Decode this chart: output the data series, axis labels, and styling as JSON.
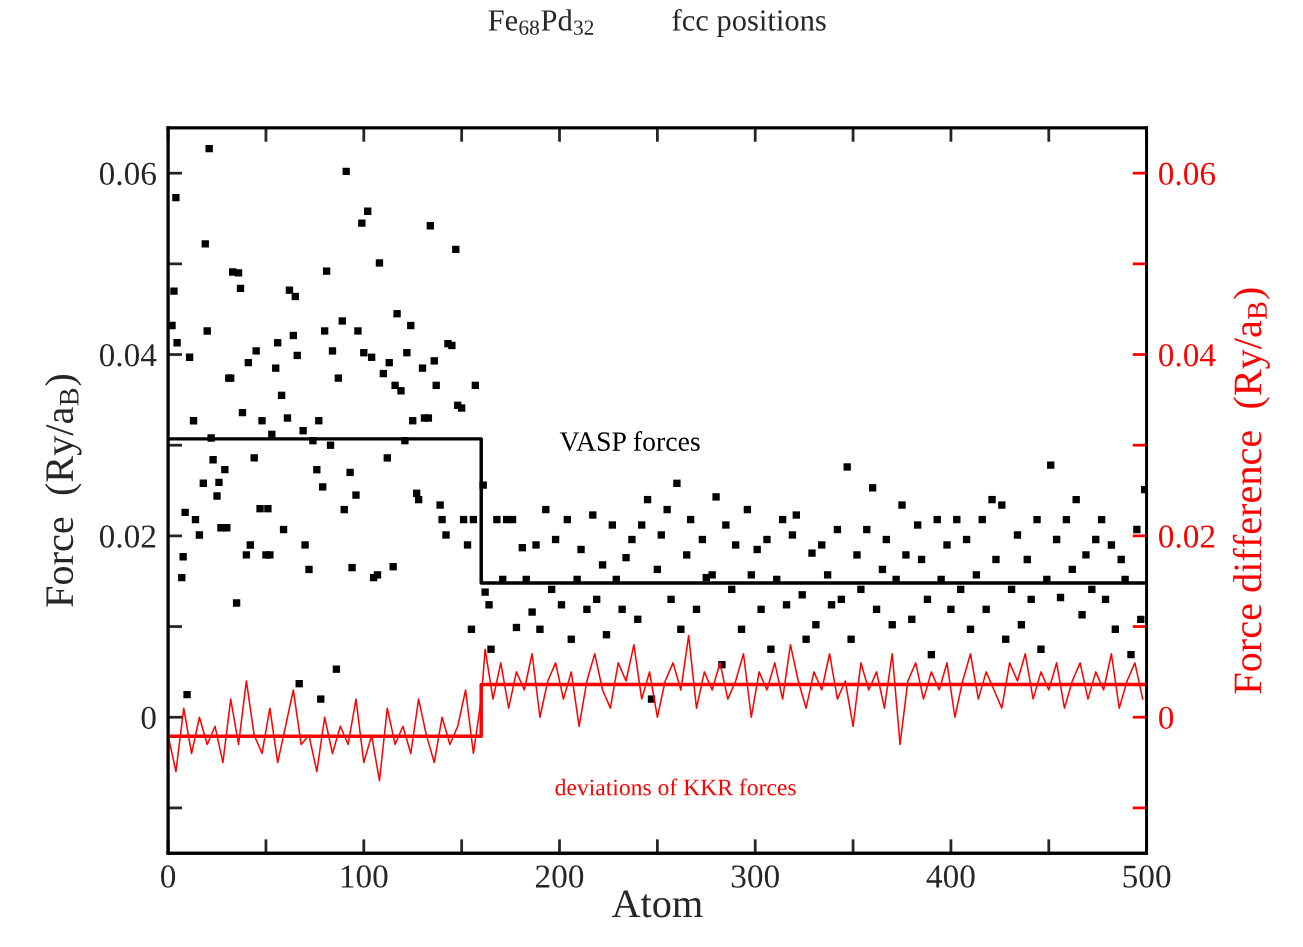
{
  "chart_data": {
    "type": "scatter",
    "title": "Fe$_{68}$Pd$_{32}$          fcc positions",
    "xlabel": "Atom",
    "ylabel": "Force  (Ry/a$_{B}$)",
    "y2label": "Force difference  (Ry/a$_{B}$)",
    "xlim": [
      0,
      500
    ],
    "xticks": [
      0,
      {
        "value": 50,
        "label": null
      },
      100,
      {
        "value": 150,
        "label": null
      },
      200,
      {
        "value": 250,
        "label": null
      },
      300,
      {
        "value": 350,
        "label": null
      },
      400,
      {
        "value": 450,
        "label": null
      },
      500
    ],
    "ylim": [
      -0.015,
      0.065
    ],
    "yticks": [
      {
        "value": -0.01,
        "label": null
      },
      0,
      {
        "value": 0.01,
        "label": null
      },
      0.02,
      {
        "value": 0.03,
        "label": null
      },
      0.04,
      {
        "value": 0.05,
        "label": null
      },
      0.06
    ],
    "y2lim": [
      -0.015,
      0.065
    ],
    "y2ticks": [
      {
        "value": -0.01,
        "label": null
      },
      0,
      {
        "value": 0.01,
        "label": null
      },
      0.02,
      {
        "value": 0.03,
        "label": null
      },
      0.04,
      {
        "value": 0.05,
        "label": null
      },
      0.06
    ],
    "series": [
      {
        "marker": "square",
        "color": "#000000",
        "x": [
          2,
          4,
          3,
          4.6,
          7.7,
          7,
          8.7,
          9.7,
          11,
          13,
          14,
          16,
          18,
          19,
          20,
          21,
          22,
          23,
          25,
          26,
          27,
          29,
          30,
          31,
          32,
          33,
          35,
          36,
          37,
          38,
          40,
          41,
          42,
          44,
          45,
          47,
          48,
          50,
          51,
          52,
          53,
          55,
          56,
          58,
          59,
          61,
          62,
          64,
          65,
          66,
          67,
          69,
          70,
          72,
          74,
          76,
          77,
          78,
          79,
          80,
          81,
          83,
          84,
          86,
          87,
          89,
          90,
          91,
          93,
          94,
          96,
          97,
          99,
          100,
          102,
          104,
          105,
          107,
          108,
          110,
          112,
          113,
          115,
          116,
          117,
          119,
          121,
          122,
          124,
          125,
          127,
          128,
          130,
          131,
          133,
          134,
          136,
          137,
          139,
          140,
          142,
          143,
          145,
          147,
          148,
          150,
          151,
          153,
          155,
          156,
          157,
          161,
          162,
          164,
          165,
          168,
          171,
          173,
          176,
          178,
          181,
          183,
          186,
          188,
          190,
          193,
          196,
          198,
          201,
          204,
          206,
          209,
          211,
          214,
          217,
          219,
          222,
          224,
          227,
          229,
          232,
          234,
          237,
          240,
          242,
          245,
          247,
          250,
          252,
          255,
          257,
          260,
          262,
          265,
          267,
          270,
          273,
          275,
          278,
          280,
          283,
          285,
          288,
          290,
          293,
          296,
          298,
          301,
          303,
          306,
          308,
          311,
          314,
          316,
          319,
          321,
          324,
          326,
          329,
          331,
          334,
          337,
          339,
          342,
          344,
          347,
          349,
          352,
          354,
          357,
          360,
          362,
          365,
          367,
          370,
          372,
          375,
          377,
          380,
          383,
          385,
          388,
          390,
          393,
          395,
          398,
          400,
          403,
          405,
          408,
          410,
          413,
          416,
          418,
          421,
          423,
          426,
          428,
          431,
          434,
          436,
          439,
          441,
          444,
          446,
          449,
          451,
          454,
          456,
          459,
          462,
          464,
          467,
          469,
          472,
          474,
          477,
          479,
          482,
          484,
          487,
          489,
          492,
          495,
          497,
          499
        ],
        "values": [
          0.0432,
          0.0573,
          0.047,
          0.0413,
          0.0177,
          0.0154,
          0.0226,
          0.0025,
          0.0397,
          0.0327,
          0.0218,
          0.0201,
          0.0258,
          0.0522,
          0.0426,
          0.0627,
          0.0308,
          0.0284,
          0.0244,
          0.0259,
          0.0209,
          0.0273,
          0.0209,
          0.0374,
          0.0374,
          0.0491,
          0.0126,
          0.049,
          0.0473,
          0.0336,
          0.0179,
          0.0391,
          0.019,
          0.0286,
          0.0404,
          0.023,
          0.0327,
          0.0179,
          0.023,
          0.0179,
          0.0312,
          0.0385,
          0.0413,
          0.0355,
          0.0207,
          0.033,
          0.0471,
          0.0421,
          0.0464,
          0.0399,
          0.0037,
          0.0316,
          0.019,
          0.0163,
          0.0305,
          0.0273,
          0.0327,
          0.002,
          0.0254,
          0.0426,
          0.0492,
          0.03,
          0.0404,
          0.0053,
          0.0374,
          0.0437,
          0.0229,
          0.0602,
          0.027,
          0.0165,
          0.0245,
          0.0426,
          0.0545,
          0.0402,
          0.0558,
          0.0397,
          0.0154,
          0.0157,
          0.0501,
          0.0379,
          0.0286,
          0.0391,
          0.0166,
          0.0366,
          0.0445,
          0.036,
          0.0305,
          0.0402,
          0.0432,
          0.0327,
          0.0247,
          0.024,
          0.0385,
          0.033,
          0.033,
          0.0542,
          0.0393,
          0.0366,
          0.0234,
          0.0218,
          0.0201,
          0.0412,
          0.041,
          0.0516,
          0.0344,
          0.0341,
          0.0218,
          0.019,
          0.0097,
          0.0218,
          0.0366,
          0.0256,
          0.0138,
          0.0124,
          0.0075,
          0.0218,
          0.0152,
          0.0218,
          0.0218,
          0.0099,
          0.0187,
          0.0152,
          0.0116,
          0.019,
          0.0097,
          0.0229,
          0.0141,
          0.0196,
          0.0124,
          0.0218,
          0.0086,
          0.0152,
          0.0185,
          0.0119,
          0.0223,
          0.013,
          0.0168,
          0.0091,
          0.0212,
          0.0152,
          0.0119,
          0.0176,
          0.0196,
          0.0108,
          0.0212,
          0.024,
          0.002,
          0.0163,
          0.0201,
          0.0229,
          0.013,
          0.0258,
          0.0097,
          0.0179,
          0.0218,
          0.0119,
          0.0196,
          0.0154,
          0.0157,
          0.0243,
          0.0058,
          0.0212,
          0.0141,
          0.019,
          0.0097,
          0.0229,
          0.0157,
          0.0185,
          0.0119,
          0.0196,
          0.0075,
          0.0152,
          0.0218,
          0.0124,
          0.0201,
          0.0223,
          0.0135,
          0.0086,
          0.0181,
          0.0102,
          0.019,
          0.0157,
          0.0124,
          0.0207,
          0.013,
          0.0276,
          0.0086,
          0.0179,
          0.0141,
          0.0207,
          0.0253,
          0.0119,
          0.0163,
          0.0196,
          0.0102,
          0.0152,
          0.0234,
          0.0179,
          0.0108,
          0.0212,
          0.0174,
          0.013,
          0.0069,
          0.0218,
          0.0152,
          0.019,
          0.0119,
          0.0218,
          0.0141,
          0.0196,
          0.0097,
          0.0157,
          0.0218,
          0.0119,
          0.024,
          0.0174,
          0.0234,
          0.0086,
          0.0141,
          0.0201,
          0.0102,
          0.0174,
          0.013,
          0.0218,
          0.0075,
          0.0152,
          0.0278,
          0.0196,
          0.0132,
          0.0218,
          0.0163,
          0.024,
          0.0113,
          0.0179,
          0.0141,
          0.0196,
          0.0218,
          0.013,
          0.019,
          0.0097,
          0.0174,
          0.0152,
          0.0069,
          0.0207,
          0.0108,
          0.0251
        ]
      },
      {
        "type": "step",
        "name": "VASP forces",
        "color": "#000000",
        "x": [
          0,
          160,
          500
        ],
        "values": [
          0.0307,
          0.0148,
          0.0148
        ]
      },
      {
        "type": "line",
        "name": "deviations of KKR forces",
        "color": "#ff0000",
        "axis": "y2",
        "x": [
          0,
          4,
          8,
          12,
          16,
          20,
          24,
          28,
          32,
          36,
          40,
          44,
          48,
          52,
          56,
          60,
          64,
          68,
          72,
          76,
          80,
          84,
          88,
          92,
          96,
          100,
          104,
          108,
          112,
          116,
          120,
          124,
          128,
          132,
          136,
          140,
          144,
          148,
          152,
          156,
          160,
          162,
          166,
          170,
          174,
          178,
          182,
          186,
          190,
          194,
          198,
          202,
          206,
          210,
          214,
          218,
          222,
          226,
          230,
          234,
          238,
          242,
          246,
          250,
          254,
          258,
          262,
          266,
          270,
          274,
          278,
          282,
          286,
          290,
          294,
          298,
          302,
          306,
          310,
          314,
          318,
          322,
          326,
          330,
          334,
          338,
          342,
          346,
          350,
          354,
          358,
          362,
          366,
          370,
          374,
          378,
          382,
          386,
          390,
          394,
          398,
          402,
          406,
          410,
          414,
          418,
          422,
          426,
          430,
          434,
          438,
          442,
          446,
          450,
          454,
          458,
          462,
          466,
          470,
          474,
          478,
          482,
          486,
          490,
          494,
          498
        ],
        "values": [
          -0.002,
          -0.006,
          0.001,
          -0.004,
          0.0,
          -0.003,
          -0.001,
          -0.005,
          0.002,
          -0.003,
          0.004,
          -0.002,
          -0.004,
          0.001,
          -0.005,
          -0.001,
          0.003,
          -0.003,
          -0.002,
          -0.006,
          0.0,
          -0.004,
          -0.001,
          -0.003,
          0.002,
          -0.005,
          -0.002,
          -0.007,
          0.001,
          -0.003,
          -0.001,
          -0.004,
          0.002,
          -0.002,
          -0.005,
          0.0,
          -0.003,
          -0.001,
          0.003,
          -0.004,
          0.002,
          0.0075,
          0.002,
          0.006,
          0.001,
          0.005,
          0.003,
          0.007,
          0.0,
          0.004,
          0.006,
          0.002,
          0.005,
          -0.001,
          0.004,
          0.007,
          0.003,
          0.001,
          0.006,
          0.004,
          0.008,
          0.002,
          0.005,
          0.0,
          0.004,
          0.006,
          0.003,
          0.009,
          0.001,
          0.005,
          0.003,
          0.006,
          0.002,
          0.004,
          0.007,
          0.0,
          0.005,
          0.003,
          0.006,
          0.002,
          0.008,
          0.004,
          0.001,
          0.005,
          0.003,
          0.007,
          0.002,
          0.004,
          -0.001,
          0.006,
          0.003,
          0.005,
          0.001,
          0.007,
          -0.003,
          0.004,
          0.006,
          0.002,
          0.005,
          0.003,
          0.006,
          0.0,
          0.004,
          0.007,
          0.002,
          0.005,
          0.003,
          0.001,
          0.006,
          0.004,
          0.007,
          0.002,
          0.005,
          0.003,
          0.006,
          0.001,
          0.004,
          0.006,
          0.002,
          0.005,
          0.003,
          0.007,
          0.001,
          0.004,
          0.006,
          0.002
        ]
      },
      {
        "type": "step",
        "color": "#ff0000",
        "axis": "y2",
        "x": [
          0,
          160,
          500
        ],
        "values": [
          -0.0021,
          0.0036,
          0.0036
        ]
      }
    ]
  }
}
